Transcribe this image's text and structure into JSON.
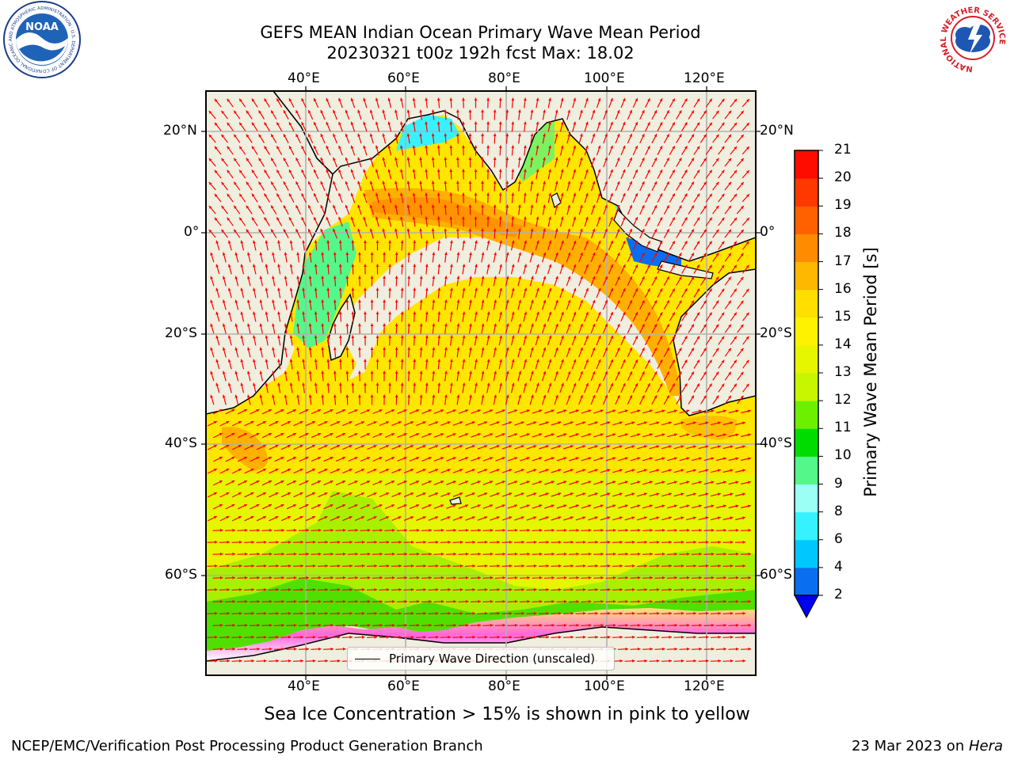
{
  "title": {
    "line1": "GEFS MEAN Indian Ocean Primary Wave Mean Period",
    "line2": "20230321 t00z 192h fcst   Max: 18.02"
  },
  "axes": {
    "lon_top": [
      "40°E",
      "60°E",
      "80°E",
      "100°E",
      "120°E"
    ],
    "lon_bottom": [
      "40°E",
      "60°E",
      "80°E",
      "100°E",
      "120°E"
    ],
    "lat_left": [
      "20°N",
      "0°",
      "20°S",
      "40°S",
      "60°S"
    ],
    "lat_right": [
      "20°N",
      "0°",
      "20°S",
      "40°S",
      "60°S"
    ]
  },
  "legend": {
    "label": "Primary Wave Direction (unscaled)"
  },
  "colorbar": {
    "title": "Primary Wave Mean Period [s]",
    "ticks": [
      "2",
      "4",
      "6",
      "8",
      "9",
      "10",
      "11",
      "12",
      "13",
      "14",
      "15",
      "16",
      "17",
      "18",
      "19",
      "20",
      "21"
    ],
    "colors": [
      "#0a6ef0",
      "#00c8ff",
      "#36f2ff",
      "#9cfff5",
      "#54f78a",
      "#00dc00",
      "#6cf000",
      "#c6f600",
      "#e6f500",
      "#fff200",
      "#ffde00",
      "#ffb800",
      "#ff8c00",
      "#ff6000",
      "#ff3800",
      "#ff0c00"
    ],
    "extend_color": "#0000ee"
  },
  "note": "Sea Ice Concentration > 15% is shown in pink to yellow",
  "footer": {
    "left": "NCEP/EMC/Verification Post Processing Product Generation Branch",
    "right_date": "23 Mar 2023 on ",
    "right_host": "Hera"
  },
  "logos": {
    "noaa_text": "NOAA",
    "noaa_ring": "NATIONAL OCEANIC AND ATMOSPHERIC ADMINISTRATION · U.S. DEPARTMENT OF COMMERCE",
    "nws_ring": "NATIONAL WEATHER SERVICE"
  },
  "colors": {
    "land": "#efeedf",
    "arrow": "#ff0000",
    "grid": "#b0b0b0",
    "ice_pink": "#ff55dd"
  }
}
